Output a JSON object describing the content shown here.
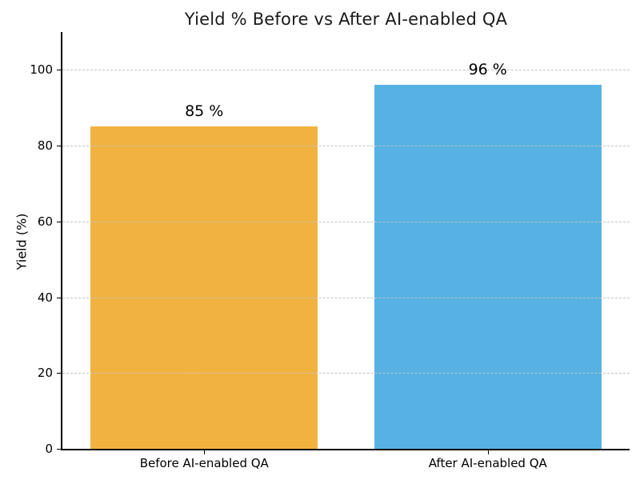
{
  "chart_data": {
    "type": "bar",
    "title": "Yield % Before vs After AI-enabled QA",
    "ylabel": "Yield (%)",
    "xlabel": "",
    "categories": [
      "Before AI-enabled QA",
      "After AI-enabled QA"
    ],
    "values": [
      85,
      96
    ],
    "value_labels": [
      "85 %",
      "96 %"
    ],
    "bar_colors": [
      "#F2B240",
      "#57B2E3"
    ],
    "ylim": [
      0,
      110
    ],
    "yticks": [
      0,
      20,
      40,
      60,
      80,
      100
    ],
    "grid": "horizontal-dashed",
    "grid_color": "#c3c3c3",
    "spine_color": "#000000",
    "background_color": "#ffffff",
    "legend": "none",
    "bar_width_fraction": 0.4,
    "bar_centers_fraction": [
      0.25,
      0.75
    ]
  }
}
